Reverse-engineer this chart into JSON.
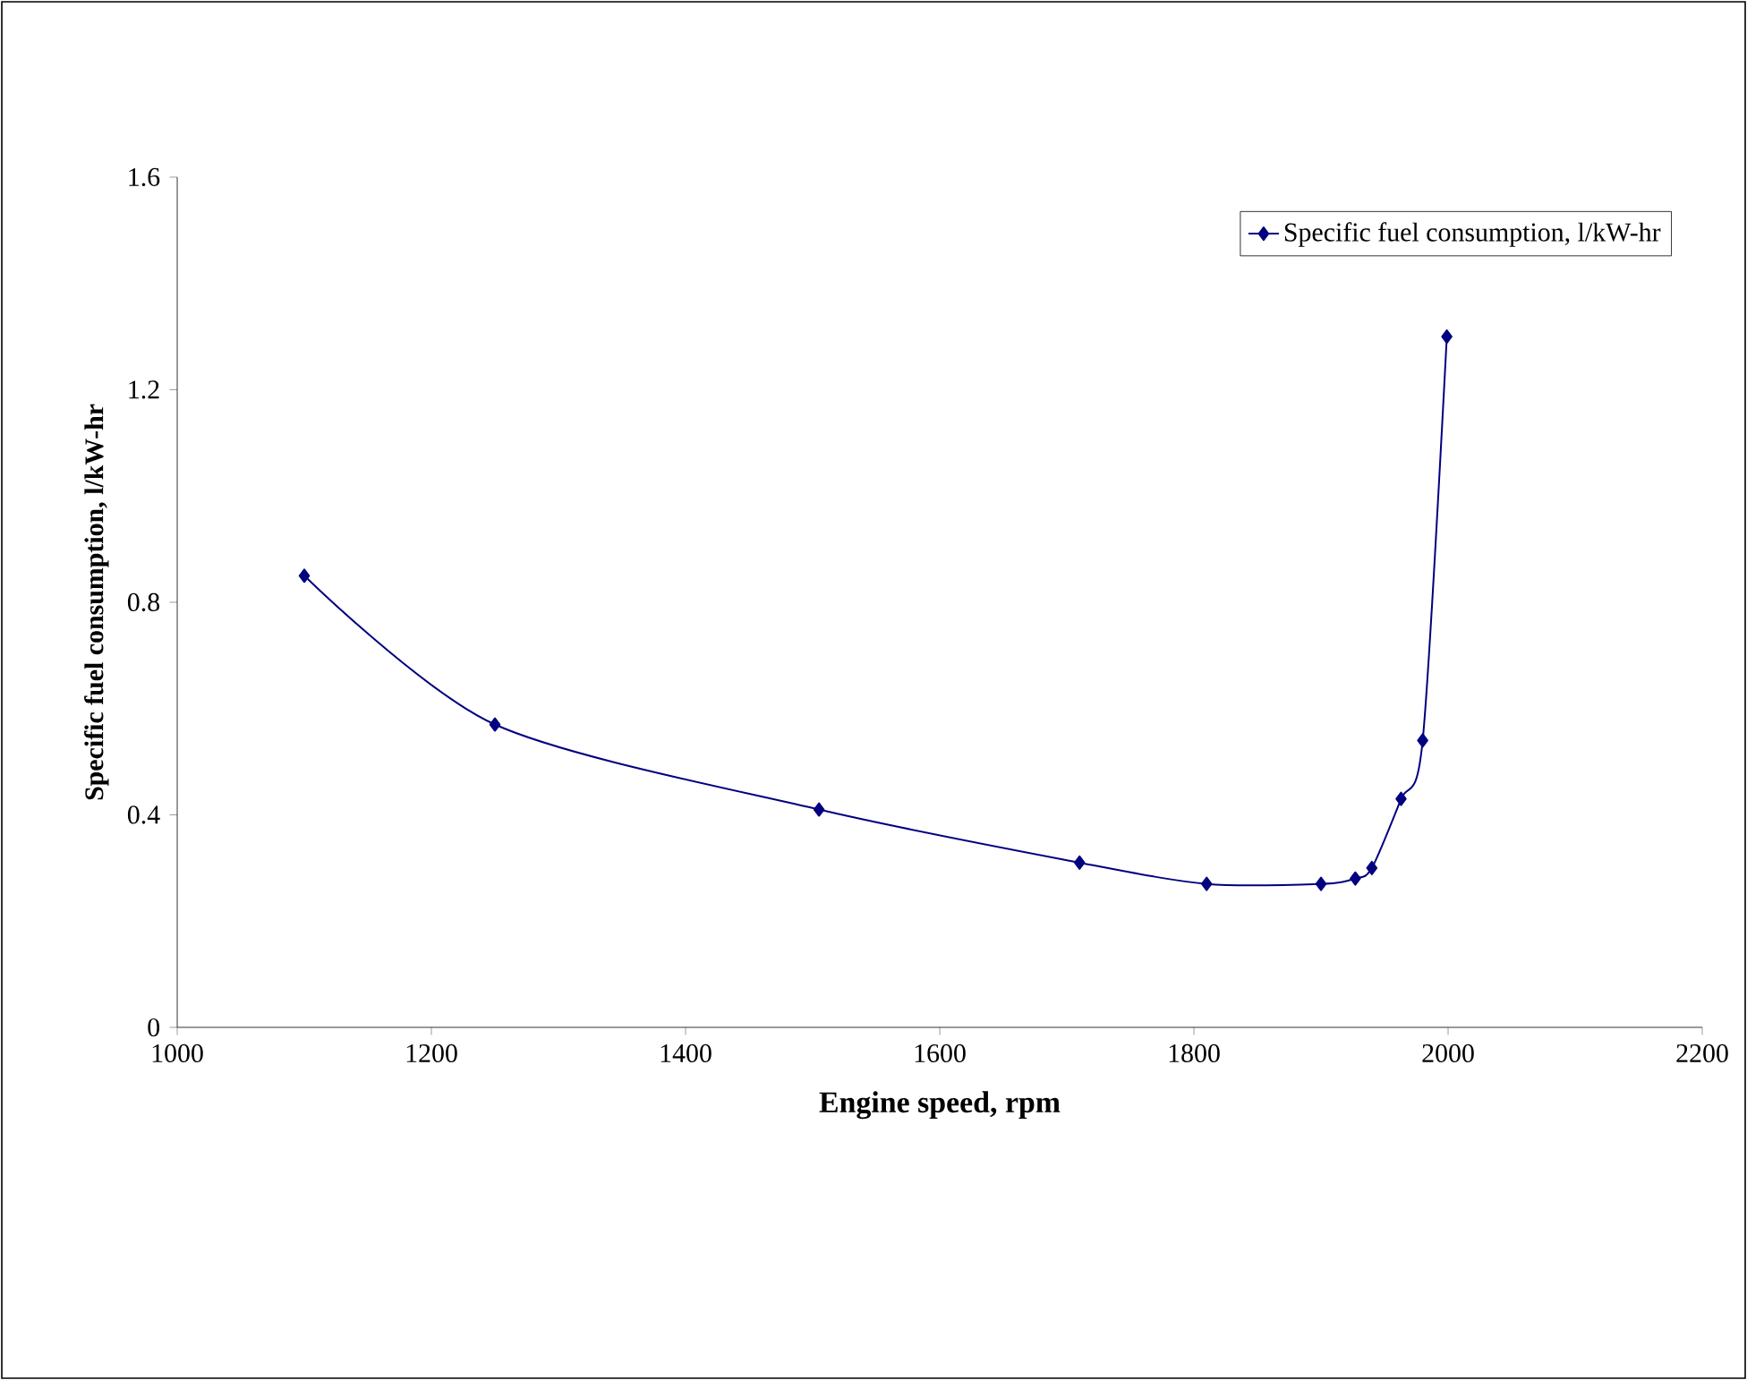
{
  "chart_data": {
    "type": "line",
    "xlabel": "Engine speed, rpm",
    "ylabel": "Specific fuel consumption, l/kW-hr",
    "x": [
      1100,
      1250,
      1505,
      1710,
      1810,
      1900,
      1927,
      1940,
      1963,
      1980,
      1999
    ],
    "series": [
      {
        "name": "Specific fuel consumption, l/kW-hr",
        "color": "#000080",
        "values": [
          0.85,
          0.57,
          0.41,
          0.31,
          0.27,
          0.27,
          0.28,
          0.3,
          0.43,
          0.54,
          1.3
        ]
      }
    ],
    "xlim": [
      1000,
      2200
    ],
    "xticks": [
      1000,
      1200,
      1400,
      1600,
      1800,
      2000,
      2200
    ],
    "ylim": [
      0,
      1.6
    ],
    "yticks": [
      0,
      0.4,
      0.8,
      1.2,
      1.6
    ],
    "legend": "top right",
    "marker": "diamond",
    "line_style": "solid",
    "grid": false
  }
}
